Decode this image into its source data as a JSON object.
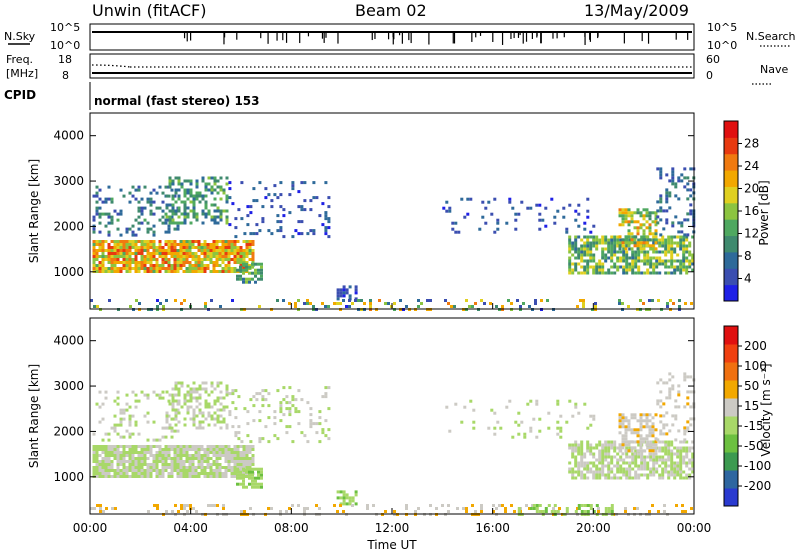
{
  "header": {
    "station": "Unwin (fitACF)",
    "beam": "Beam 02",
    "date": "13/May/2009"
  },
  "noise_panel": {
    "left_label": "N.Sky",
    "right_label": "N.Search",
    "left_ticks": [
      "10^5",
      "10^0"
    ],
    "right_ticks": [
      "10^5",
      "10^0"
    ]
  },
  "freq_panel": {
    "left_label_1": "Freq.",
    "left_label_2": "[MHz]",
    "right_label": "Nave",
    "left_ticks": [
      "18",
      "8"
    ],
    "right_ticks": [
      "60",
      "0"
    ]
  },
  "cpid": {
    "label": "CPID",
    "mode": "normal (fast stereo) 153"
  },
  "chart_data": [
    {
      "type": "heatmap",
      "name": "power",
      "ylabel": "Slant Range [km]",
      "ylim": [
        180,
        4500
      ],
      "yticks": [
        "4000",
        "3000",
        "2000",
        "1000"
      ],
      "xlim_hours": [
        0,
        24
      ],
      "colorbar": {
        "label": "Power [dB]",
        "range": [
          0,
          32
        ],
        "tick_labels": [
          "28",
          "24",
          "20",
          "16",
          "12",
          "8",
          "4"
        ],
        "colors": [
          "#1f20e6",
          "#3b4eb0",
          "#2e6a9a",
          "#3f8a6e",
          "#4fa860",
          "#8cc440",
          "#e0d020",
          "#f2a800",
          "#f07a10",
          "#e83a10",
          "#e01010"
        ]
      },
      "regions": [
        {
          "x0": 0.1,
          "x1": 6.5,
          "r0": 1000,
          "r1": 1700,
          "dens": 0.85,
          "v0": 14,
          "v1": 28
        },
        {
          "x0": 0.1,
          "x1": 3.5,
          "r0": 1800,
          "r1": 2900,
          "dens": 0.25,
          "v0": 4,
          "v1": 12
        },
        {
          "x0": 3.0,
          "x1": 5.5,
          "r0": 2100,
          "r1": 3100,
          "dens": 0.45,
          "v0": 6,
          "v1": 16
        },
        {
          "x0": 5.5,
          "x1": 9.5,
          "r0": 1800,
          "r1": 3000,
          "dens": 0.15,
          "v0": 2,
          "v1": 8
        },
        {
          "x0": 5.8,
          "x1": 6.8,
          "r0": 800,
          "r1": 1200,
          "dens": 0.7,
          "v0": 8,
          "v1": 16
        },
        {
          "x0": 9.8,
          "x1": 10.6,
          "r0": 400,
          "r1": 700,
          "dens": 0.5,
          "v0": 2,
          "v1": 8
        },
        {
          "x0": 14.0,
          "x1": 20.0,
          "r0": 1900,
          "r1": 2700,
          "dens": 0.1,
          "v0": 2,
          "v1": 8
        },
        {
          "x0": 19.0,
          "x1": 24.0,
          "r0": 1000,
          "r1": 1800,
          "dens": 0.7,
          "v0": 8,
          "v1": 20
        },
        {
          "x0": 21.0,
          "x1": 22.5,
          "r0": 1500,
          "r1": 2400,
          "dens": 0.6,
          "v0": 10,
          "v1": 24
        },
        {
          "x0": 22.5,
          "x1": 24.0,
          "r0": 1800,
          "r1": 3300,
          "dens": 0.25,
          "v0": 4,
          "v1": 10
        },
        {
          "x0": 0.0,
          "x1": 24.0,
          "r0": 200,
          "r1": 400,
          "dens": 0.2,
          "v0": 2,
          "v1": 24
        }
      ]
    },
    {
      "type": "heatmap",
      "name": "velocity",
      "ylabel": "Slant Range [km]",
      "ylim": [
        180,
        4500
      ],
      "yticks": [
        "4000",
        "3000",
        "2000",
        "1000"
      ],
      "xlim_hours": [
        0,
        24
      ],
      "xticks": [
        "00:00",
        "04:00",
        "08:00",
        "12:00",
        "16:00",
        "20:00",
        "00:00"
      ],
      "xlabel": "Time UT",
      "colorbar": {
        "label": "Velocity [m s⁻¹]",
        "range": [
          -250,
          250
        ],
        "tick_labels": [
          "200",
          "100",
          "50",
          "15",
          "-15",
          "-50",
          "-100",
          "-200"
        ],
        "colors": [
          "#e01010",
          "#f04010",
          "#f07010",
          "#f2a800",
          "#cccac4",
          "#a8d868",
          "#6cc040",
          "#3c9a50",
          "#2e66a0",
          "#2a3ad0"
        ]
      },
      "regions": [
        {
          "x0": 0.1,
          "x1": 6.5,
          "r0": 1000,
          "r1": 1700,
          "dens": 0.85,
          "v0": -12,
          "v1": 12
        },
        {
          "x0": 0.1,
          "x1": 3.5,
          "r0": 1800,
          "r1": 2900,
          "dens": 0.2,
          "v0": -12,
          "v1": 12
        },
        {
          "x0": 3.0,
          "x1": 5.5,
          "r0": 2100,
          "r1": 3100,
          "dens": 0.4,
          "v0": -12,
          "v1": 12
        },
        {
          "x0": 5.5,
          "x1": 9.5,
          "r0": 1800,
          "r1": 3000,
          "dens": 0.15,
          "v0": -12,
          "v1": 12
        },
        {
          "x0": 5.8,
          "x1": 6.8,
          "r0": 800,
          "r1": 1200,
          "dens": 0.7,
          "v0": -60,
          "v1": -20
        },
        {
          "x0": 9.8,
          "x1": 10.6,
          "r0": 400,
          "r1": 700,
          "dens": 0.5,
          "v0": -60,
          "v1": -20
        },
        {
          "x0": 14.0,
          "x1": 20.0,
          "r0": 1900,
          "r1": 2700,
          "dens": 0.1,
          "v0": -12,
          "v1": 12
        },
        {
          "x0": 19.0,
          "x1": 24.0,
          "r0": 1000,
          "r1": 1800,
          "dens": 0.7,
          "v0": -12,
          "v1": 12
        },
        {
          "x0": 21.0,
          "x1": 22.5,
          "r0": 1500,
          "r1": 2400,
          "dens": 0.6,
          "v0": 15,
          "v1": 60
        },
        {
          "x0": 22.5,
          "x1": 24.0,
          "r0": 1800,
          "r1": 3300,
          "dens": 0.25,
          "v0": 15,
          "v1": 60
        },
        {
          "x0": 0.0,
          "x1": 24.0,
          "r0": 200,
          "r1": 400,
          "dens": 0.2,
          "v0": 15,
          "v1": 80
        },
        {
          "x0": 17.0,
          "x1": 21.0,
          "r0": 200,
          "r1": 400,
          "dens": 0.35,
          "v0": -60,
          "v1": -20
        }
      ]
    }
  ]
}
